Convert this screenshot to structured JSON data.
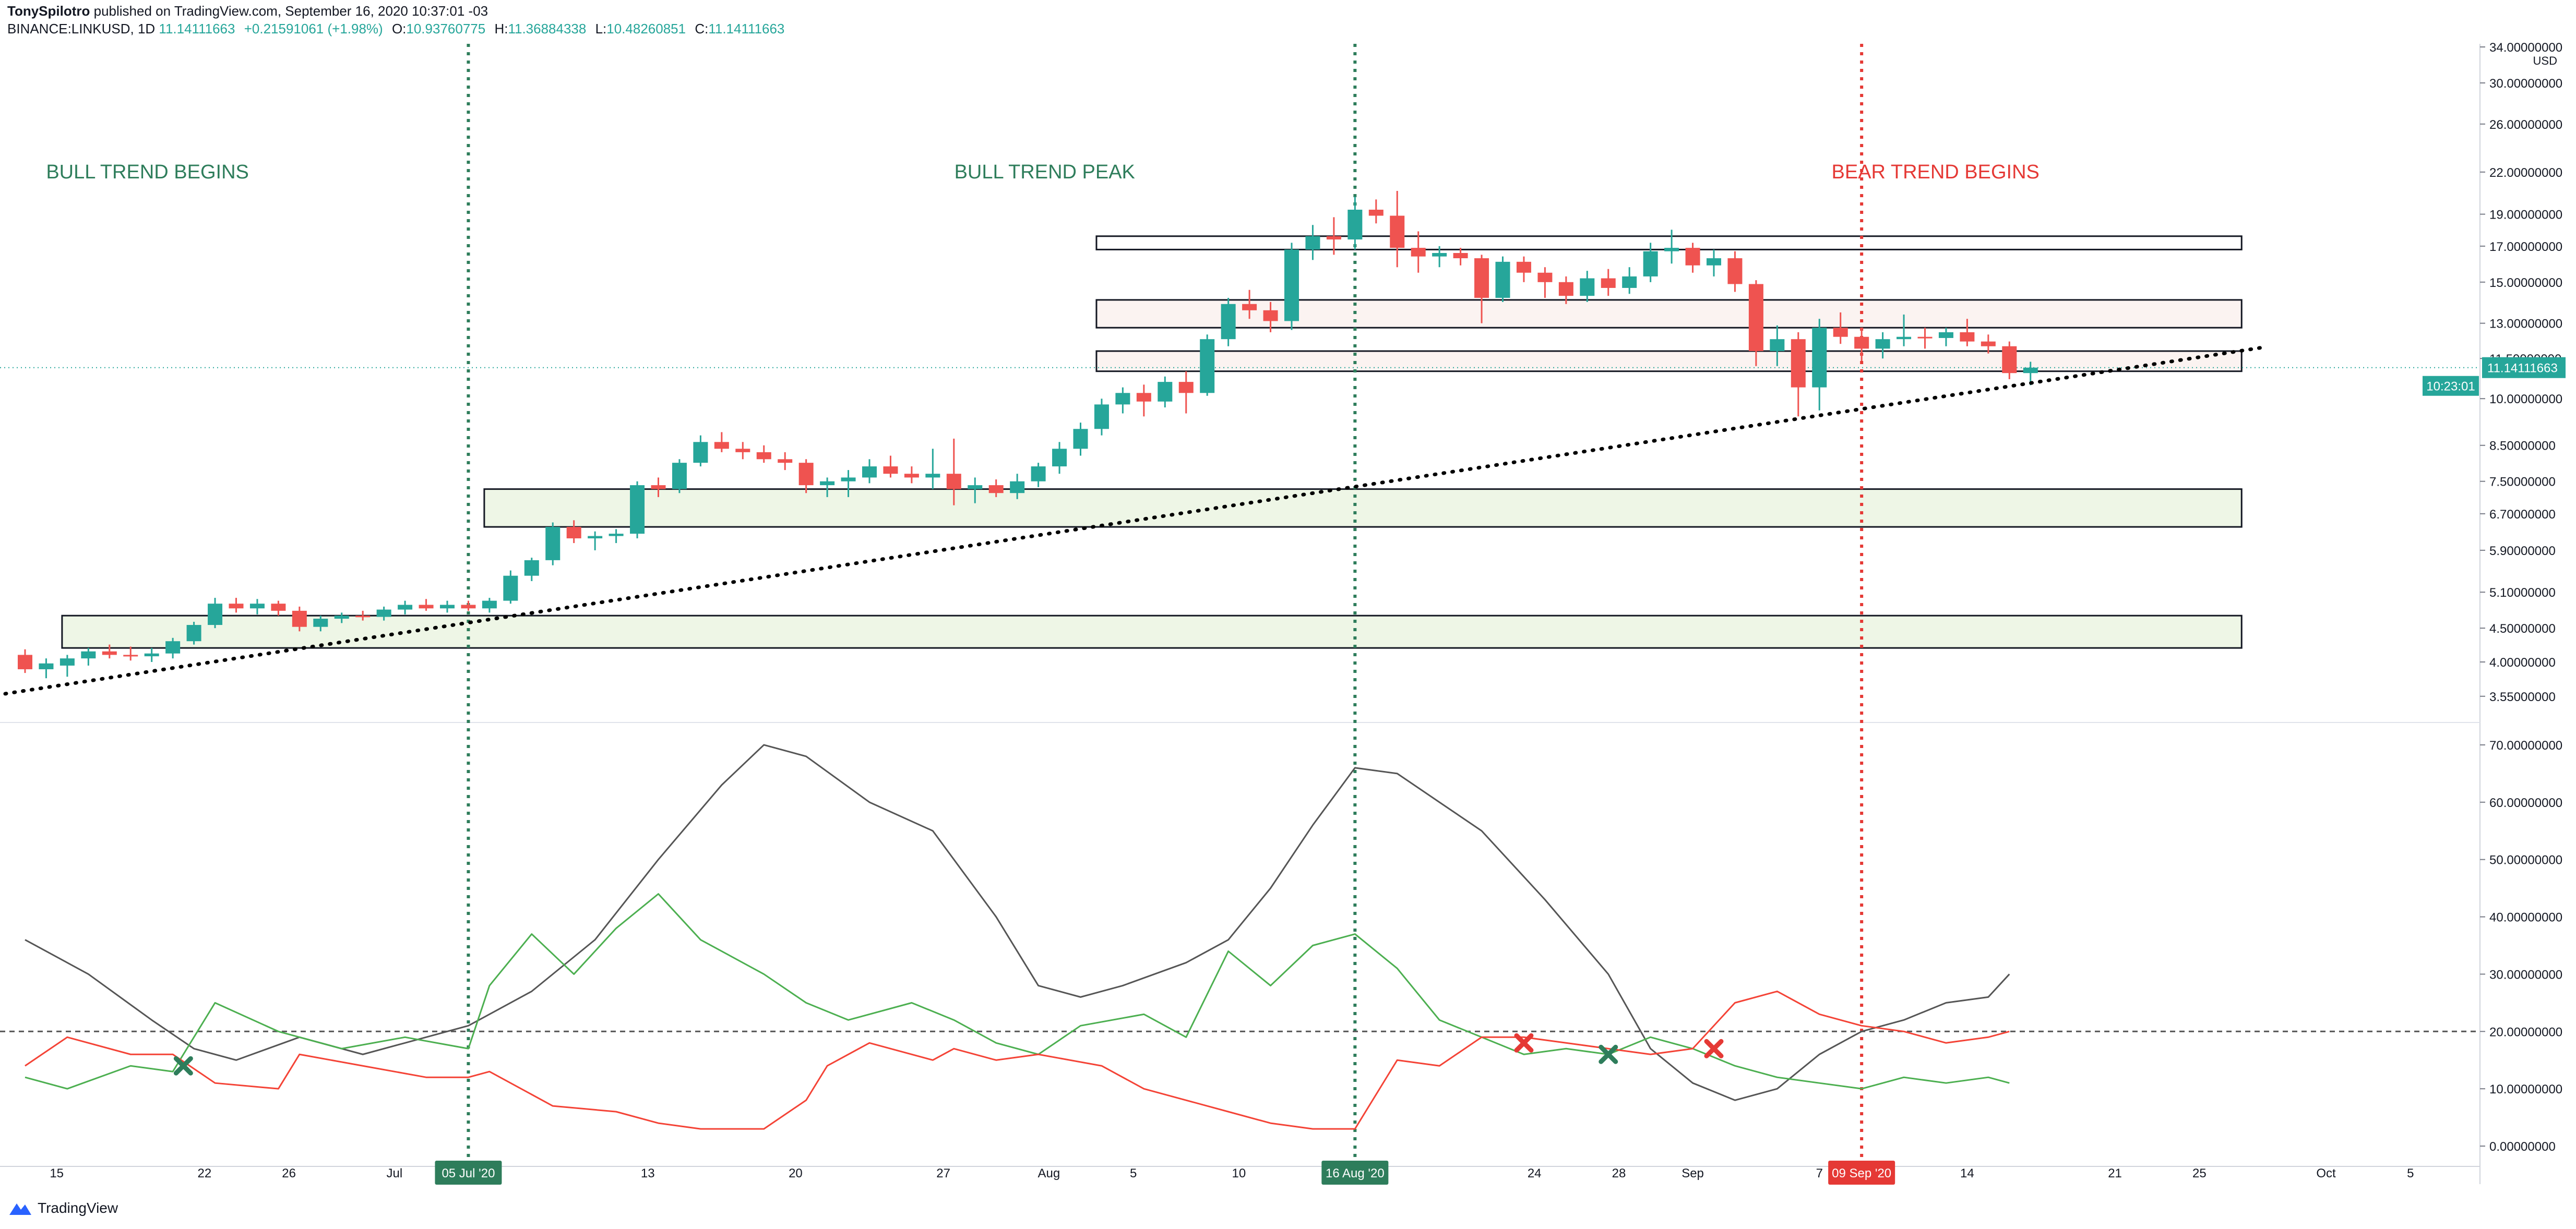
{
  "header": {
    "author": "TonySpilotro",
    "published_text": "published on TradingView.com, September 16, 2020 10:37:01 -03",
    "symbol": "BINANCE:LINKUSD, 1D",
    "last": "11.14111663",
    "change": "+0.21591061 (+1.98%)",
    "o_label": "O:",
    "o_value": "10.93760775",
    "h_label": "H:",
    "h_value": "11.36884338",
    "l_label": "L:",
    "l_value": "10.48260851",
    "c_label": "C:",
    "c_value": "11.14111663"
  },
  "footer": {
    "logo_text": "TradingView"
  },
  "colors": {
    "up": "#26a69a",
    "down": "#ef5350",
    "green_text": "#2e7d5b",
    "red_text": "#e53935",
    "adx": "#555555",
    "di_plus": "#4caf50",
    "di_minus": "#f44336"
  },
  "chart_data": [
    {
      "type": "candlestick",
      "currency": "USD",
      "ylog": true,
      "ylim": [
        3.3,
        34.0
      ],
      "y_ticks": [
        "34.00000000",
        "30.00000000",
        "26.00000000",
        "22.00000000",
        "19.00000000",
        "17.00000000",
        "15.00000000",
        "13.00000000",
        "11.50000000",
        "10.00000000",
        "8.50000000",
        "7.50000000",
        "6.70000000",
        "5.90000000",
        "5.10000000",
        "4.50000000",
        "4.00000000",
        "3.55000000"
      ],
      "y_tick_values": [
        34,
        30,
        26,
        22,
        19,
        17,
        15,
        13,
        11.5,
        10,
        8.5,
        7.5,
        6.7,
        5.9,
        5.1,
        4.5,
        4.0,
        3.55
      ],
      "last_price_label": "11.14111663",
      "countdown_label": "10:23:01",
      "candles": [
        {
          "o": 4.1,
          "h": 4.18,
          "l": 3.85,
          "c": 3.9
        },
        {
          "o": 3.9,
          "h": 4.05,
          "l": 3.78,
          "c": 3.98
        },
        {
          "o": 3.95,
          "h": 4.1,
          "l": 3.8,
          "c": 4.05
        },
        {
          "o": 4.05,
          "h": 4.2,
          "l": 3.95,
          "c": 4.15
        },
        {
          "o": 4.15,
          "h": 4.25,
          "l": 4.05,
          "c": 4.1
        },
        {
          "o": 4.1,
          "h": 4.22,
          "l": 4.02,
          "c": 4.08
        },
        {
          "o": 4.08,
          "h": 4.2,
          "l": 4.0,
          "c": 4.12
        },
        {
          "o": 4.12,
          "h": 4.35,
          "l": 4.05,
          "c": 4.3
        },
        {
          "o": 4.3,
          "h": 4.6,
          "l": 4.25,
          "c": 4.55
        },
        {
          "o": 4.55,
          "h": 5.0,
          "l": 4.5,
          "c": 4.9
        },
        {
          "o": 4.9,
          "h": 5.0,
          "l": 4.75,
          "c": 4.82
        },
        {
          "o": 4.82,
          "h": 4.98,
          "l": 4.72,
          "c": 4.9
        },
        {
          "o": 4.9,
          "h": 4.95,
          "l": 4.7,
          "c": 4.78
        },
        {
          "o": 4.78,
          "h": 4.85,
          "l": 4.45,
          "c": 4.52
        },
        {
          "o": 4.52,
          "h": 4.7,
          "l": 4.45,
          "c": 4.65
        },
        {
          "o": 4.65,
          "h": 4.75,
          "l": 4.58,
          "c": 4.7
        },
        {
          "o": 4.7,
          "h": 4.78,
          "l": 4.62,
          "c": 4.68
        },
        {
          "o": 4.68,
          "h": 4.85,
          "l": 4.62,
          "c": 4.8
        },
        {
          "o": 4.8,
          "h": 4.95,
          "l": 4.72,
          "c": 4.88
        },
        {
          "o": 4.88,
          "h": 4.98,
          "l": 4.78,
          "c": 4.82
        },
        {
          "o": 4.82,
          "h": 4.95,
          "l": 4.75,
          "c": 4.88
        },
        {
          "o": 4.88,
          "h": 4.95,
          "l": 4.78,
          "c": 4.82
        },
        {
          "o": 4.82,
          "h": 5.0,
          "l": 4.75,
          "c": 4.95
        },
        {
          "o": 4.95,
          "h": 5.5,
          "l": 4.9,
          "c": 5.4
        },
        {
          "o": 5.4,
          "h": 5.75,
          "l": 5.3,
          "c": 5.7
        },
        {
          "o": 5.7,
          "h": 6.5,
          "l": 5.6,
          "c": 6.4
        },
        {
          "o": 6.4,
          "h": 6.55,
          "l": 6.05,
          "c": 6.15
        },
        {
          "o": 6.15,
          "h": 6.3,
          "l": 5.9,
          "c": 6.2
        },
        {
          "o": 6.2,
          "h": 6.35,
          "l": 6.05,
          "c": 6.25
        },
        {
          "o": 6.25,
          "h": 7.5,
          "l": 6.15,
          "c": 7.4
        },
        {
          "o": 7.4,
          "h": 7.6,
          "l": 7.1,
          "c": 7.3
        },
        {
          "o": 7.3,
          "h": 8.1,
          "l": 7.2,
          "c": 8.0
        },
        {
          "o": 8.0,
          "h": 8.8,
          "l": 7.9,
          "c": 8.6
        },
        {
          "o": 8.6,
          "h": 8.9,
          "l": 8.3,
          "c": 8.4
        },
        {
          "o": 8.4,
          "h": 8.6,
          "l": 8.1,
          "c": 8.3
        },
        {
          "o": 8.3,
          "h": 8.5,
          "l": 8.0,
          "c": 8.1
        },
        {
          "o": 8.1,
          "h": 8.3,
          "l": 7.8,
          "c": 8.0
        },
        {
          "o": 8.0,
          "h": 8.1,
          "l": 7.2,
          "c": 7.4
        },
        {
          "o": 7.4,
          "h": 7.6,
          "l": 7.1,
          "c": 7.5
        },
        {
          "o": 7.5,
          "h": 7.8,
          "l": 7.1,
          "c": 7.6
        },
        {
          "o": 7.6,
          "h": 8.1,
          "l": 7.45,
          "c": 7.9
        },
        {
          "o": 7.9,
          "h": 8.2,
          "l": 7.6,
          "c": 7.7
        },
        {
          "o": 7.7,
          "h": 7.9,
          "l": 7.45,
          "c": 7.6
        },
        {
          "o": 7.6,
          "h": 8.4,
          "l": 7.3,
          "c": 7.7
        },
        {
          "o": 7.7,
          "h": 8.7,
          "l": 6.9,
          "c": 7.3
        },
        {
          "o": 7.3,
          "h": 7.6,
          "l": 6.95,
          "c": 7.4
        },
        {
          "o": 7.4,
          "h": 7.55,
          "l": 7.1,
          "c": 7.2
        },
        {
          "o": 7.2,
          "h": 7.7,
          "l": 7.05,
          "c": 7.5
        },
        {
          "o": 7.5,
          "h": 8.0,
          "l": 7.35,
          "c": 7.9
        },
        {
          "o": 7.9,
          "h": 8.6,
          "l": 7.7,
          "c": 8.4
        },
        {
          "o": 8.4,
          "h": 9.2,
          "l": 8.2,
          "c": 9.0
        },
        {
          "o": 9.0,
          "h": 10.0,
          "l": 8.8,
          "c": 9.8
        },
        {
          "o": 9.8,
          "h": 10.4,
          "l": 9.5,
          "c": 10.2
        },
        {
          "o": 10.2,
          "h": 10.5,
          "l": 9.4,
          "c": 9.9
        },
        {
          "o": 9.9,
          "h": 10.8,
          "l": 9.7,
          "c": 10.6
        },
        {
          "o": 10.6,
          "h": 11.0,
          "l": 9.5,
          "c": 10.2
        },
        {
          "o": 10.2,
          "h": 12.5,
          "l": 10.1,
          "c": 12.3
        },
        {
          "o": 12.3,
          "h": 14.2,
          "l": 12.0,
          "c": 13.9
        },
        {
          "o": 13.9,
          "h": 14.6,
          "l": 13.2,
          "c": 13.6
        },
        {
          "o": 13.6,
          "h": 14.0,
          "l": 12.6,
          "c": 13.1
        },
        {
          "o": 13.1,
          "h": 17.2,
          "l": 12.7,
          "c": 16.8
        },
        {
          "o": 16.8,
          "h": 18.3,
          "l": 16.2,
          "c": 17.6
        },
        {
          "o": 17.6,
          "h": 18.8,
          "l": 16.5,
          "c": 17.4
        },
        {
          "o": 17.4,
          "h": 20.2,
          "l": 16.8,
          "c": 19.3
        },
        {
          "o": 19.3,
          "h": 20.0,
          "l": 18.4,
          "c": 18.9
        },
        {
          "o": 18.9,
          "h": 20.6,
          "l": 15.8,
          "c": 16.9
        },
        {
          "o": 16.9,
          "h": 17.9,
          "l": 15.5,
          "c": 16.4
        },
        {
          "o": 16.4,
          "h": 17.0,
          "l": 15.8,
          "c": 16.6
        },
        {
          "o": 16.6,
          "h": 16.9,
          "l": 15.9,
          "c": 16.3
        },
        {
          "o": 16.3,
          "h": 16.5,
          "l": 13.0,
          "c": 14.2
        },
        {
          "o": 14.2,
          "h": 16.4,
          "l": 14.0,
          "c": 16.1
        },
        {
          "o": 16.1,
          "h": 16.4,
          "l": 15.0,
          "c": 15.5
        },
        {
          "o": 15.5,
          "h": 15.8,
          "l": 14.2,
          "c": 15.0
        },
        {
          "o": 15.0,
          "h": 15.3,
          "l": 13.9,
          "c": 14.3
        },
        {
          "o": 14.3,
          "h": 15.6,
          "l": 14.0,
          "c": 15.2
        },
        {
          "o": 15.2,
          "h": 15.7,
          "l": 14.3,
          "c": 14.7
        },
        {
          "o": 14.7,
          "h": 15.8,
          "l": 14.4,
          "c": 15.3
        },
        {
          "o": 15.3,
          "h": 17.2,
          "l": 15.0,
          "c": 16.7
        },
        {
          "o": 16.7,
          "h": 18.0,
          "l": 16.0,
          "c": 16.9
        },
        {
          "o": 16.9,
          "h": 17.2,
          "l": 15.5,
          "c": 15.9
        },
        {
          "o": 15.9,
          "h": 16.8,
          "l": 15.3,
          "c": 16.3
        },
        {
          "o": 16.3,
          "h": 16.7,
          "l": 14.5,
          "c": 14.9
        },
        {
          "o": 14.9,
          "h": 15.1,
          "l": 11.2,
          "c": 11.8
        },
        {
          "o": 11.8,
          "h": 12.9,
          "l": 11.2,
          "c": 12.3
        },
        {
          "o": 12.3,
          "h": 12.6,
          "l": 9.4,
          "c": 10.4
        },
        {
          "o": 10.4,
          "h": 13.2,
          "l": 9.6,
          "c": 12.8
        },
        {
          "o": 12.8,
          "h": 13.5,
          "l": 12.1,
          "c": 12.4
        },
        {
          "o": 12.4,
          "h": 12.8,
          "l": 11.4,
          "c": 11.9
        },
        {
          "o": 11.9,
          "h": 12.6,
          "l": 11.5,
          "c": 12.3
        },
        {
          "o": 12.3,
          "h": 13.4,
          "l": 12.0,
          "c": 12.4
        },
        {
          "o": 12.4,
          "h": 12.8,
          "l": 11.9,
          "c": 12.35
        },
        {
          "o": 12.35,
          "h": 12.8,
          "l": 12.0,
          "c": 12.6
        },
        {
          "o": 12.6,
          "h": 13.2,
          "l": 12.0,
          "c": 12.2
        },
        {
          "o": 12.2,
          "h": 12.5,
          "l": 11.7,
          "c": 12.0
        },
        {
          "o": 12.0,
          "h": 12.2,
          "l": 10.7,
          "c": 10.93
        },
        {
          "o": 10.93,
          "h": 11.37,
          "l": 10.48,
          "c": 11.14
        }
      ],
      "zones": [
        {
          "from": 16.8,
          "to": 17.6,
          "start_day": 51,
          "end_day": 105,
          "fill": "#ffffff"
        },
        {
          "from": 12.8,
          "to": 14.1,
          "start_day": 51,
          "end_day": 105,
          "fill": "#fbf3f1"
        },
        {
          "from": 11.0,
          "to": 11.8,
          "start_day": 51,
          "end_day": 105,
          "fill": "#fbf3f1"
        },
        {
          "from": 6.4,
          "to": 7.3,
          "start_day": 22,
          "end_day": 105,
          "fill": "#eef6e6"
        },
        {
          "from": 4.2,
          "to": 4.7,
          "start_day": 2,
          "end_day": 105,
          "fill": "#eef6e6"
        }
      ],
      "trendline": {
        "day_a": 0,
        "price_a": 3.62,
        "day_b": 106,
        "price_b": 11.95
      },
      "annotations": [
        {
          "text": "BULL TREND BEGINS",
          "color": "green"
        },
        {
          "text": "BULL TREND PEAK",
          "color": "green"
        },
        {
          "text": "BEAR TREND BEGINS",
          "color": "red"
        }
      ],
      "vlines": [
        {
          "day": 21,
          "color": "#2e7d5b",
          "label": "05 Jul '20"
        },
        {
          "day": 63,
          "color": "#2e7d5b",
          "label": "16 Aug '20"
        },
        {
          "day": 87,
          "color": "#e53935",
          "label": "09 Sep '20"
        }
      ],
      "x_ticks": [
        {
          "day": 1.5,
          "label": "15"
        },
        {
          "day": 8.5,
          "label": "22"
        },
        {
          "day": 12.5,
          "label": "26"
        },
        {
          "day": 17.5,
          "label": "Jul"
        },
        {
          "day": 29.5,
          "label": "13"
        },
        {
          "day": 36.5,
          "label": "20"
        },
        {
          "day": 43.5,
          "label": "27"
        },
        {
          "day": 48.5,
          "label": "Aug"
        },
        {
          "day": 52.5,
          "label": "5"
        },
        {
          "day": 57.5,
          "label": "10"
        },
        {
          "day": 71.5,
          "label": "24"
        },
        {
          "day": 75.5,
          "label": "28"
        },
        {
          "day": 79,
          "label": "Sep"
        },
        {
          "day": 85,
          "label": "7"
        },
        {
          "day": 92,
          "label": "14"
        },
        {
          "day": 99,
          "label": "21"
        },
        {
          "day": 103,
          "label": "25"
        },
        {
          "day": 109,
          "label": "Oct"
        },
        {
          "day": 113,
          "label": "5"
        }
      ]
    },
    {
      "type": "line",
      "ylim": [
        -3,
        73
      ],
      "y_ticks": [
        "70.00000000",
        "60.00000000",
        "50.00000000",
        "40.00000000",
        "30.00000000",
        "20.00000000",
        "10.00000000",
        "0.00000000"
      ],
      "y_tick_values": [
        70,
        60,
        50,
        40,
        30,
        20,
        10,
        0
      ],
      "reference_level": 20,
      "series": [
        {
          "color": "adx",
          "x": [
            0,
            3,
            6,
            8,
            10,
            13,
            16,
            18,
            21,
            24,
            27,
            30,
            33,
            35,
            37,
            40,
            43,
            46,
            48,
            50,
            52,
            55,
            57,
            59,
            61,
            63,
            65,
            67,
            69,
            72,
            75,
            77,
            79,
            81,
            83,
            85,
            87,
            89,
            91,
            93,
            94
          ],
          "values": [
            36,
            30,
            22,
            17,
            15,
            19,
            16,
            18,
            21,
            27,
            36,
            50,
            63,
            70,
            68,
            60,
            55,
            40,
            28,
            26,
            28,
            32,
            36,
            45,
            56,
            66,
            65,
            60,
            55,
            43,
            30,
            17,
            11,
            8,
            10,
            16,
            20,
            22,
            25,
            26,
            30
          ]
        },
        {
          "color": "di_plus",
          "x": [
            0,
            2,
            5,
            7,
            9,
            12,
            15,
            18,
            21,
            22,
            24,
            26,
            28,
            30,
            32,
            35,
            37,
            39,
            42,
            44,
            46,
            48,
            50,
            53,
            55,
            57,
            59,
            61,
            63,
            65,
            67,
            69,
            71,
            73,
            75,
            77,
            79,
            81,
            83,
            85,
            87,
            89,
            91,
            93,
            94
          ],
          "values": [
            12,
            10,
            14,
            13,
            25,
            20,
            17,
            19,
            17,
            28,
            37,
            30,
            38,
            44,
            36,
            30,
            25,
            22,
            25,
            22,
            18,
            16,
            21,
            23,
            19,
            34,
            28,
            35,
            37,
            31,
            22,
            19,
            16,
            17,
            16,
            19,
            17,
            14,
            12,
            11,
            10,
            12,
            11,
            12,
            11
          ]
        },
        {
          "color": "di_minus",
          "x": [
            0,
            2,
            5,
            7,
            9,
            12,
            13,
            16,
            19,
            21,
            22,
            25,
            28,
            30,
            32,
            35,
            37,
            38,
            40,
            43,
            44,
            46,
            48,
            51,
            53,
            55,
            57,
            59,
            61,
            63,
            65,
            67,
            69,
            71,
            73,
            75,
            77,
            79,
            81,
            83,
            85,
            87,
            89,
            91,
            93,
            94
          ],
          "values": [
            14,
            19,
            16,
            16,
            11,
            10,
            16,
            14,
            12,
            12,
            13,
            7,
            6,
            4,
            3,
            3,
            8,
            14,
            18,
            15,
            17,
            15,
            16,
            14,
            10,
            8,
            6,
            4,
            3,
            3,
            15,
            14,
            19,
            19,
            18,
            17,
            16,
            17,
            25,
            27,
            23,
            21,
            20,
            18,
            19,
            20
          ]
        }
      ],
      "markers": [
        {
          "x": 7.5,
          "y": 14,
          "color": "#2e7d5b"
        },
        {
          "x": 71,
          "y": 18,
          "color": "#e53935"
        },
        {
          "x": 75,
          "y": 16,
          "color": "#2e7d5b"
        },
        {
          "x": 80,
          "y": 17,
          "color": "#e53935"
        }
      ]
    }
  ]
}
